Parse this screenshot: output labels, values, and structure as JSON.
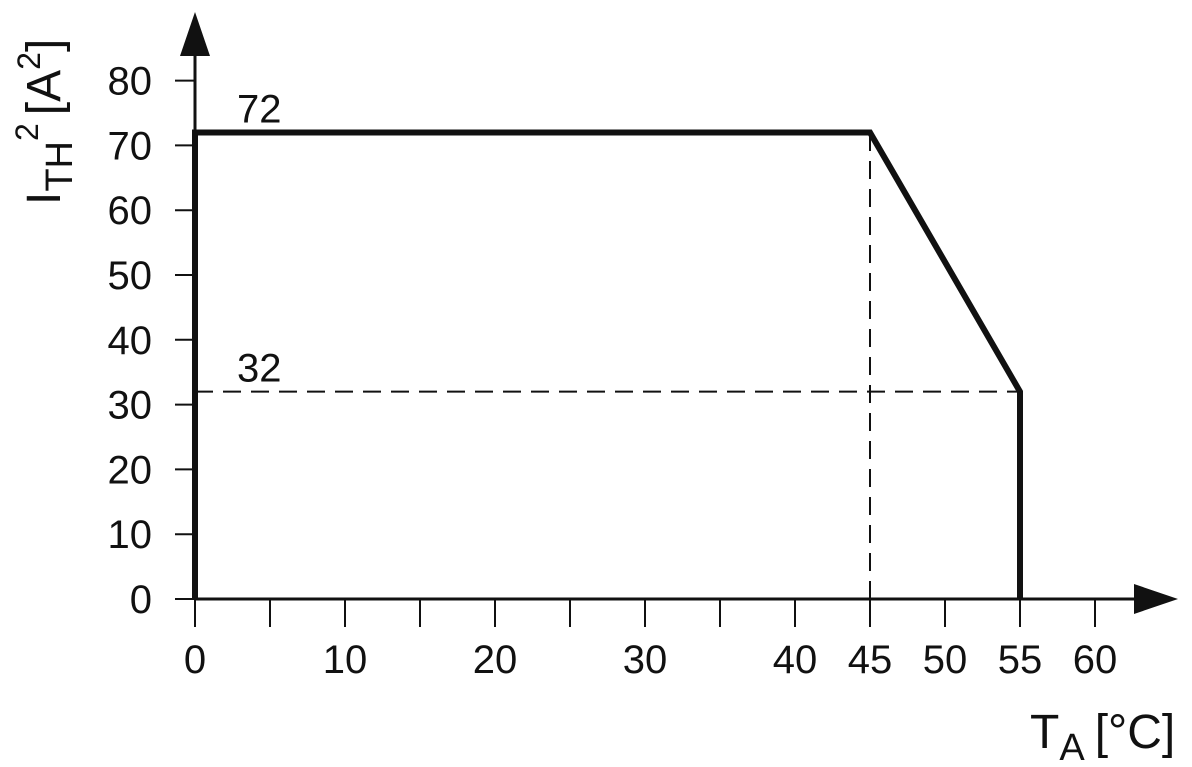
{
  "chart_data": {
    "type": "line",
    "xlabel": {
      "main": "T",
      "sub": "A",
      "unit": "[°C]"
    },
    "ylabel": {
      "main": "I",
      "sub": "TH",
      "sup": "2",
      "unit_open": "[A",
      "unit_sup": "2",
      "unit_close": "]"
    },
    "xlim": [
      0,
      62
    ],
    "ylim": [
      0,
      85
    ],
    "x_ticks": [
      0,
      5,
      10,
      15,
      20,
      25,
      30,
      35,
      40,
      45,
      50,
      55,
      60
    ],
    "x_tick_labels": [
      "0",
      "10",
      "20",
      "30",
      "40",
      "45",
      "50",
      "55",
      "60"
    ],
    "x_tick_label_values": [
      0,
      10,
      20,
      30,
      40,
      45,
      50,
      55,
      60
    ],
    "y_ticks": [
      0,
      10,
      20,
      30,
      40,
      50,
      60,
      70,
      80
    ],
    "y_tick_labels": [
      "0",
      "10",
      "20",
      "30",
      "40",
      "50",
      "60",
      "70",
      "80"
    ],
    "grid": false,
    "series": [
      {
        "x": [
          0,
          0,
          45,
          55,
          55
        ],
        "y": [
          0,
          72,
          72,
          32,
          0
        ],
        "style": "solid"
      }
    ],
    "reference_lines": [
      {
        "x": [
          0,
          55
        ],
        "y": [
          32,
          32
        ],
        "style": "dashed"
      },
      {
        "x": [
          45,
          45
        ],
        "y": [
          0,
          72
        ],
        "style": "dashed"
      }
    ],
    "annotations": [
      {
        "text": "72",
        "x": 2.8,
        "y": 72
      },
      {
        "text": "32",
        "x": 2.8,
        "y": 32
      }
    ],
    "line_color": "#111111"
  }
}
